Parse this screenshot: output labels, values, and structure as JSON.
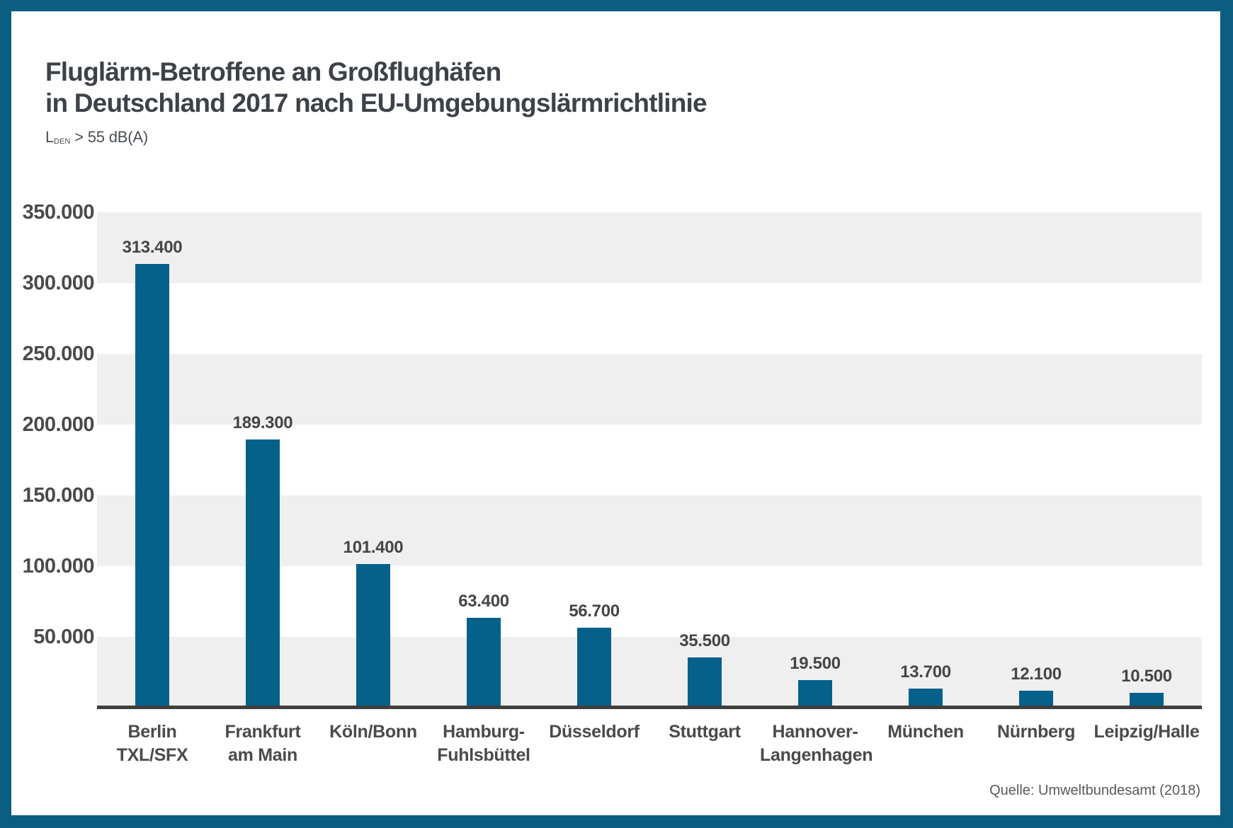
{
  "frame": {
    "border_color": "#0b5e82",
    "background": "#ffffff"
  },
  "header": {
    "title_line1": "Fluglärm-Betroffene an Großflughäfen",
    "title_line2": "in Deutschland 2017 nach EU-Umgebungslärmrichtlinie",
    "subtitle_symbol": "L",
    "subtitle_subscript": "DEN",
    "subtitle_rest": "> 55 dB(A)"
  },
  "chart_data": {
    "type": "bar",
    "title": "Fluglärm-Betroffene an Großflughäfen in Deutschland 2017 nach EU-Umgebungslärmrichtlinie",
    "subtitle": "L DEN > 55 dB(A)",
    "categories": [
      [
        "Berlin",
        "TXL/SFX"
      ],
      [
        "Frankfurt",
        "am Main"
      ],
      [
        "Köln/Bonn"
      ],
      [
        "Hamburg-",
        "Fuhlsbüttel"
      ],
      [
        "Düsseldorf"
      ],
      [
        "Stuttgart"
      ],
      [
        "Hannover-",
        "Langenhagen"
      ],
      [
        "München"
      ],
      [
        "Nürnberg"
      ],
      [
        "Leipzig/Halle"
      ]
    ],
    "values": [
      313400,
      189300,
      101400,
      63400,
      56700,
      35500,
      19500,
      13700,
      12100,
      10500
    ],
    "value_labels": [
      "313.400",
      "189.300",
      "101.400",
      "63.400",
      "56.700",
      "35.500",
      "19.500",
      "13.700",
      "12.100",
      "10.500"
    ],
    "xlabel": "",
    "ylabel": "",
    "ylim": [
      0,
      350000
    ],
    "ytick_step": 50000,
    "ytick_labels": [
      "350.000",
      "300.000",
      "250.000",
      "200.000",
      "150.000",
      "100.000",
      "50.000"
    ],
    "grid": "alternating-horizontal-bands",
    "legend": "none",
    "bar_color": "#05608a",
    "band_color": "#efefef",
    "axis_line_color": "#3f3f3f"
  },
  "footer": {
    "source": "Quelle: Umweltbundesamt (2018)"
  }
}
